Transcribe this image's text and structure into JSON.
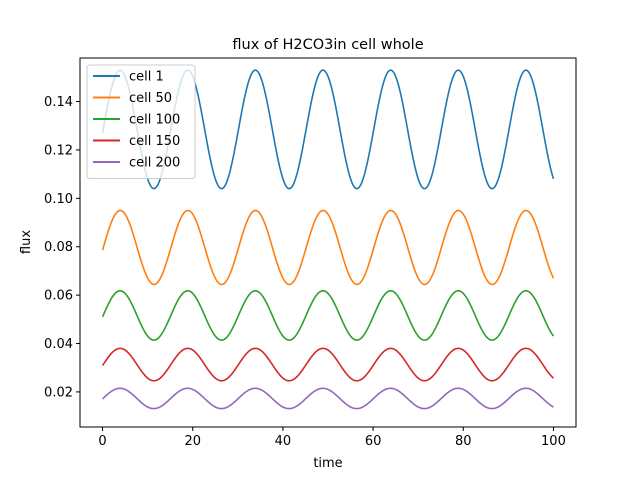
{
  "chart_data": {
    "type": "line",
    "title": "flux of H2CO3in cell whole",
    "xlabel": "time",
    "ylabel": "flux",
    "xlim": [
      -5,
      105
    ],
    "ylim": [
      0.0055,
      0.158
    ],
    "xticks": [
      0,
      20,
      40,
      60,
      80,
      100
    ],
    "yticks": [
      0.02,
      0.04,
      0.06,
      0.08,
      0.1,
      0.12,
      0.14
    ],
    "ytick_labels": [
      "0.02",
      "0.04",
      "0.06",
      "0.08",
      "0.10",
      "0.12",
      "0.14"
    ],
    "grid": false,
    "legend_position": "top-left",
    "period": 15,
    "x_start": 0,
    "x_end": 100,
    "series": [
      {
        "name": "cell 1",
        "color": "#1f77b4",
        "mean": 0.1285,
        "amplitude": 0.0245,
        "value_at_0": 0.127
      },
      {
        "name": "cell 50",
        "color": "#ff7f0e",
        "mean": 0.0797,
        "amplitude": 0.0153,
        "value_at_0": 0.0786
      },
      {
        "name": "cell 100",
        "color": "#2ca02c",
        "mean": 0.0516,
        "amplitude": 0.0102,
        "value_at_0": 0.051
      },
      {
        "name": "cell 150",
        "color": "#d62728",
        "mean": 0.0313,
        "amplitude": 0.0067,
        "value_at_0": 0.0309
      },
      {
        "name": "cell 200",
        "color": "#9467bd",
        "mean": 0.0173,
        "amplitude": 0.0042,
        "value_at_0": 0.0171
      }
    ]
  }
}
